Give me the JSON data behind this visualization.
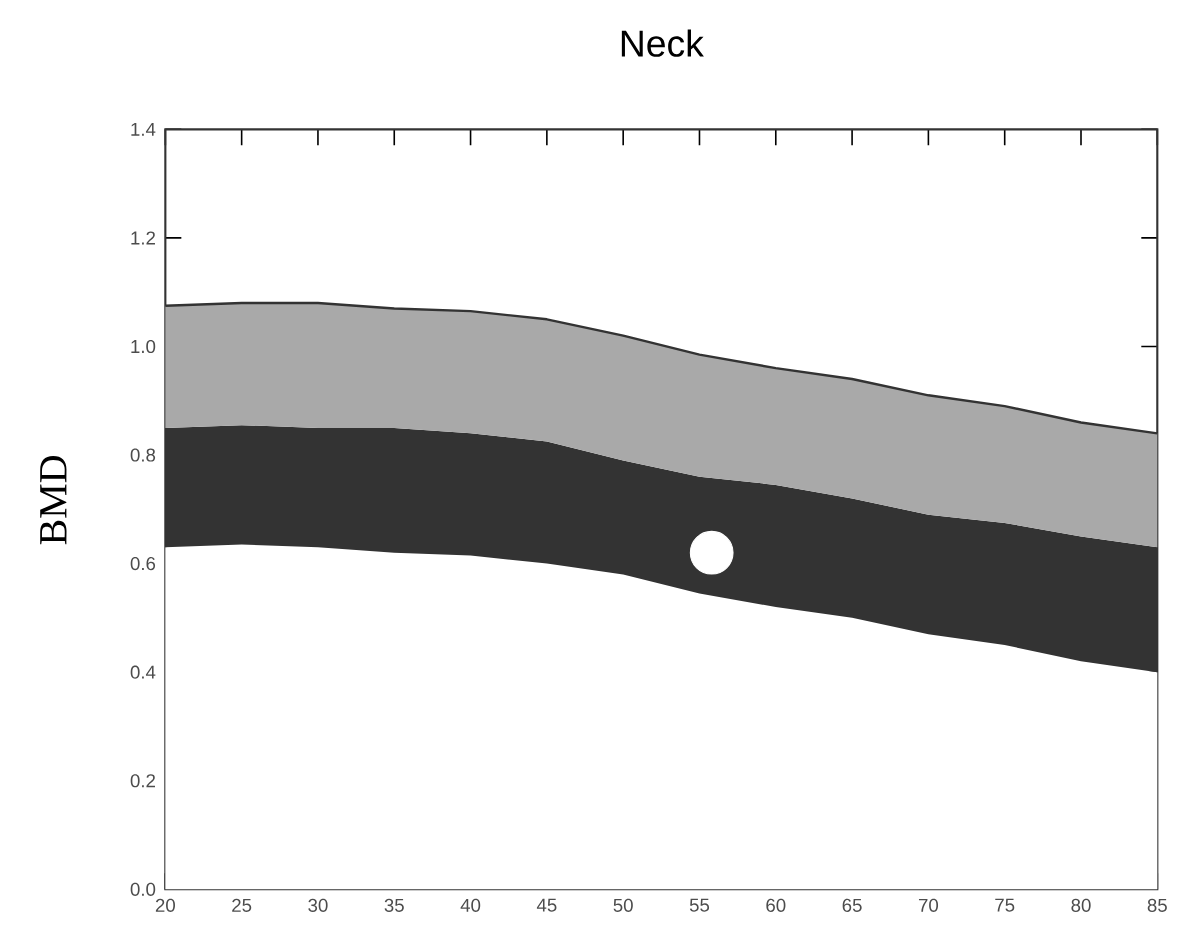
{
  "chart_data": {
    "type": "area",
    "stacked": true,
    "title": "Neck",
    "ylabel": "BMD",
    "x": [
      20,
      25,
      30,
      35,
      40,
      45,
      50,
      55,
      60,
      65,
      70,
      75,
      80,
      85
    ],
    "series": [
      {
        "color": "#ffffff",
        "values": [
          0.63,
          0.635,
          0.63,
          0.62,
          0.615,
          0.6,
          0.58,
          0.545,
          0.52,
          0.5,
          0.47,
          0.45,
          0.42,
          0.4
        ]
      },
      {
        "color": "#333333",
        "values": [
          0.22,
          0.22,
          0.22,
          0.23,
          0.225,
          0.225,
          0.21,
          0.215,
          0.225,
          0.22,
          0.22,
          0.225,
          0.23,
          0.23
        ]
      },
      {
        "color": "#a9a9a9",
        "values": [
          0.225,
          0.225,
          0.23,
          0.22,
          0.225,
          0.225,
          0.23,
          0.225,
          0.215,
          0.22,
          0.22,
          0.215,
          0.21,
          0.21
        ]
      },
      {
        "type": "scatter",
        "color": "#ffffff",
        "marker": "circle",
        "x": [
          55.8
        ],
        "values": [
          0.62
        ]
      }
    ],
    "xlim": [
      20,
      85
    ],
    "xticks": [
      20,
      25,
      30,
      35,
      40,
      45,
      50,
      55,
      60,
      65,
      70,
      75,
      80,
      85
    ],
    "ylim": [
      0,
      1.4
    ],
    "yticks": [
      {
        "value": 0,
        "label": "0.0"
      },
      {
        "value": 0.2,
        "label": "0.2"
      },
      {
        "value": 0.4,
        "label": "0.4"
      },
      {
        "value": 0.6,
        "label": "0.6"
      },
      {
        "value": 0.8,
        "label": "0.8"
      },
      {
        "value": 1.0,
        "label": "1.0"
      },
      {
        "value": 1.2,
        "label": "1.2"
      },
      {
        "value": 1.4,
        "label": "1.4"
      }
    ],
    "grid": false
  }
}
